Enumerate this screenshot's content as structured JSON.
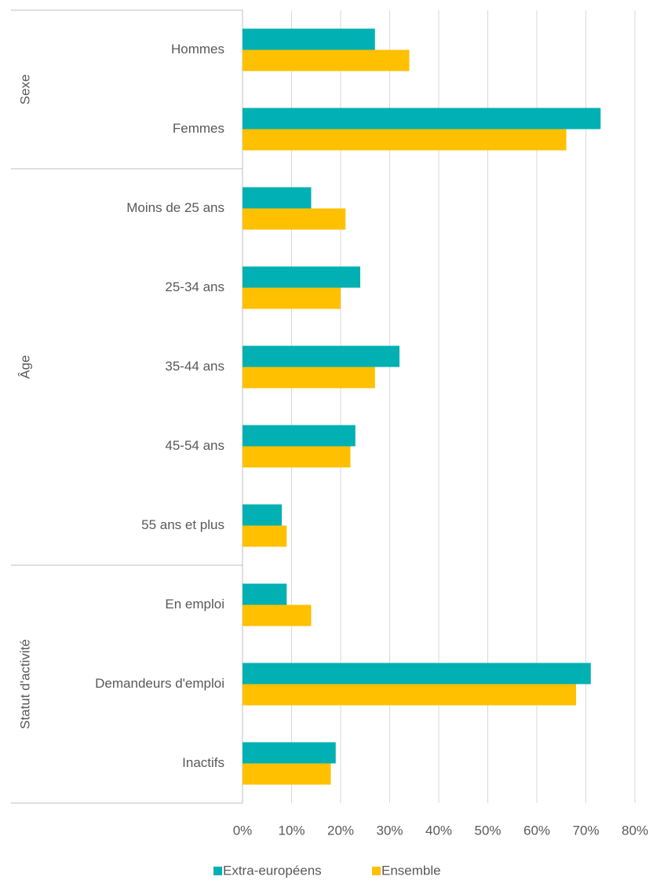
{
  "chart_data": {
    "type": "bar",
    "orientation": "horizontal",
    "groups": [
      {
        "name": "Sexe",
        "categories": [
          "Hommes",
          "Femmes"
        ]
      },
      {
        "name": "Âge",
        "categories": [
          "Moins de 25 ans",
          "25-34 ans",
          "35-44 ans",
          "45-54 ans",
          "55 ans et plus"
        ]
      },
      {
        "name": "Statut d'activité",
        "categories": [
          "En emploi",
          "Demandeurs d'emploi",
          "Inactifs"
        ]
      }
    ],
    "series": [
      {
        "name": "Extra-européens",
        "color": "#00b0b3",
        "values": [
          27,
          73,
          14,
          24,
          32,
          23,
          8,
          9,
          71,
          19
        ]
      },
      {
        "name": "Ensemble",
        "color": "#ffc000",
        "values": [
          34,
          66,
          21,
          20,
          27,
          22,
          9,
          14,
          68,
          18
        ]
      }
    ],
    "xlim": [
      0,
      80
    ],
    "xticks": [
      {
        "value": 0,
        "label": "0%"
      },
      {
        "value": 10,
        "label": "10%"
      },
      {
        "value": 20,
        "label": "20%"
      },
      {
        "value": 30,
        "label": "30%"
      },
      {
        "value": 40,
        "label": "40%"
      },
      {
        "value": 50,
        "label": "50%"
      },
      {
        "value": 60,
        "label": "60%"
      },
      {
        "value": 70,
        "label": "70%"
      },
      {
        "value": 80,
        "label": "80%"
      }
    ],
    "grid": true,
    "legend": "bottom"
  }
}
